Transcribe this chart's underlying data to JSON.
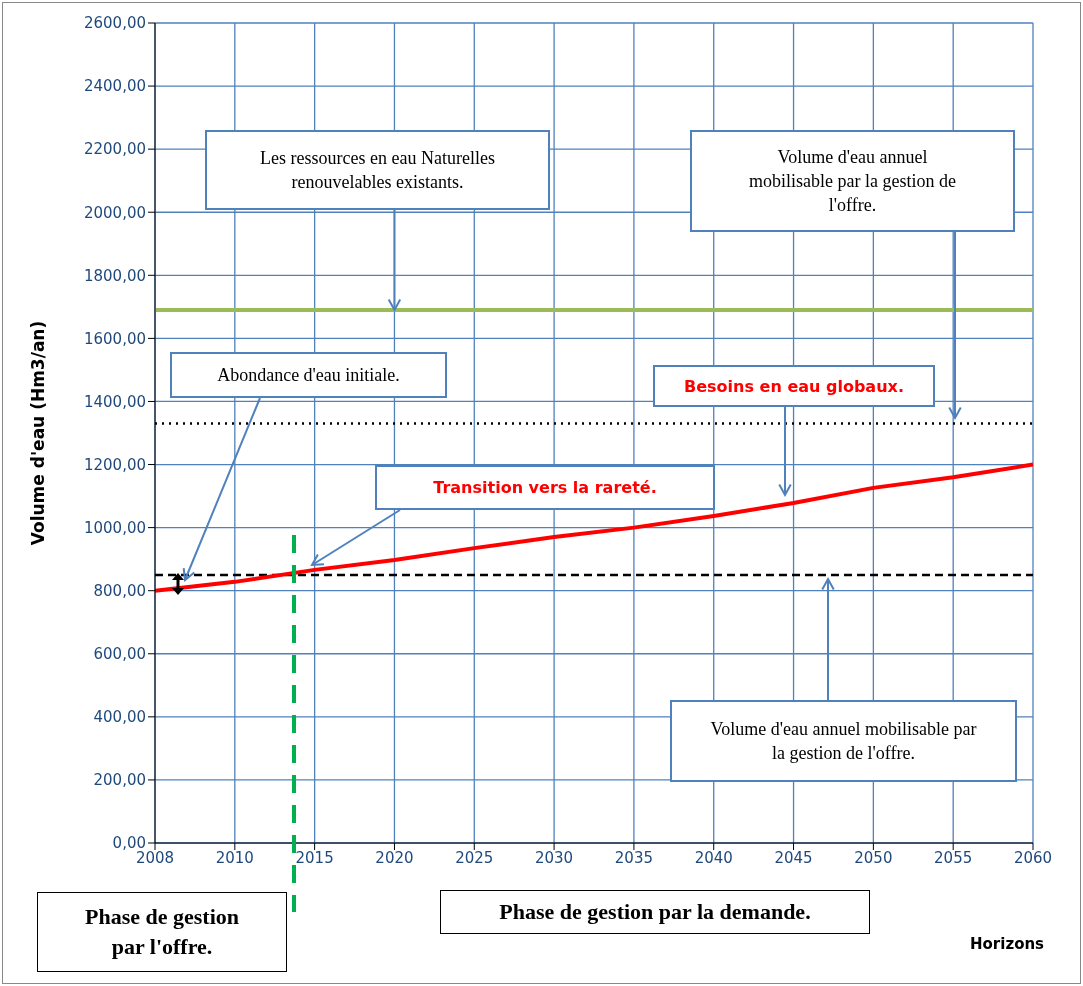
{
  "chart_data": {
    "type": "line",
    "ylabel": "Volume d'eau (Hm3/an)",
    "xlabel": "Horizons",
    "categories": [
      "2008",
      "2010",
      "2015",
      "2020",
      "2025",
      "2030",
      "2035",
      "2040",
      "2045",
      "2050",
      "2055",
      "2060"
    ],
    "series": [
      {
        "name": "Besoins en eau globaux.",
        "color": "#ff0000",
        "values": [
          800,
          828,
          866,
          897,
          935,
          970,
          1000,
          1037,
          1078,
          1126,
          1160,
          1200
        ]
      }
    ],
    "ylim": [
      0,
      2600
    ],
    "yticks": [
      {
        "value": 0,
        "label": "0,00"
      },
      {
        "value": 200,
        "label": "200,00"
      },
      {
        "value": 400,
        "label": "400,00"
      },
      {
        "value": 600,
        "label": "600,00"
      },
      {
        "value": 800,
        "label": "800,00"
      },
      {
        "value": 1000,
        "label": "1000,00"
      },
      {
        "value": 1200,
        "label": "1200,00"
      },
      {
        "value": 1400,
        "label": "1400,00"
      },
      {
        "value": 1600,
        "label": "1600,00"
      },
      {
        "value": 1800,
        "label": "1800,00"
      },
      {
        "value": 2000,
        "label": "2000,00"
      },
      {
        "value": 2200,
        "label": "2200,00"
      },
      {
        "value": 2400,
        "label": "2400,00"
      },
      {
        "value": 2600,
        "label": "2600,00"
      }
    ],
    "ref_lines": [
      {
        "axis": "y",
        "value": 1690,
        "color": "#9bbb59",
        "line_style": "solid"
      },
      {
        "axis": "y",
        "value": 1330,
        "color": "#000000",
        "line_style": "dotted"
      },
      {
        "axis": "y",
        "value": 850,
        "color": "#000000",
        "line_style": "dashed"
      }
    ],
    "annotations": [
      {
        "text": "Les ressources  en eau Naturelles renouvelables existants.",
        "x": "2020",
        "y": 1690
      },
      "Volume d'eau annuel mobilisable par la gestion de l'offre.",
      "Abondance d'eau initiale.",
      "Transition vers la rareté.",
      "Volume d'eau annuel mobilisable par la gestion de l'offre.",
      "Phase de gestion par l'offre.",
      "Phase de gestion par la demande."
    ],
    "grid": true,
    "legend": false,
    "marker": "none",
    "line_style": "solid"
  }
}
